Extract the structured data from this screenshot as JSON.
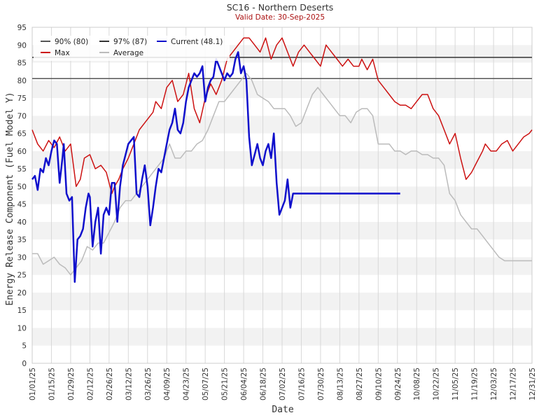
{
  "chart_data": {
    "type": "line",
    "title": "SC16 - Northern Deserts",
    "subtitle": "Valid Date: 30-Sep-2025",
    "xlabel": "Date",
    "ylabel": "Energy Release Component (Fuel Model Y)",
    "ylim": [
      0,
      95
    ],
    "yticks": [
      0,
      5,
      10,
      15,
      20,
      25,
      30,
      35,
      40,
      45,
      50,
      55,
      60,
      65,
      70,
      75,
      80,
      85,
      90,
      95
    ],
    "xticks": [
      "01/01/25",
      "01/15/25",
      "01/29/25",
      "02/12/25",
      "02/26/25",
      "03/12/25",
      "03/26/25",
      "04/09/25",
      "04/23/25",
      "05/07/25",
      "05/21/25",
      "06/04/25",
      "06/18/25",
      "07/02/25",
      "07/16/25",
      "07/30/25",
      "08/13/25",
      "08/27/25",
      "09/10/25",
      "09/24/25",
      "10/08/25",
      "10/22/25",
      "11/05/25",
      "11/19/25",
      "12/03/25",
      "12/17/25",
      "12/31/25"
    ],
    "grid": true,
    "legend_position": "top-left",
    "thresholds": [
      {
        "name": "90% (80)",
        "value": 80.5,
        "color": "#555555"
      },
      {
        "name": "97% (87)",
        "value": 86.5,
        "color": "#333333"
      }
    ],
    "series": [
      {
        "name": "Max",
        "color": "#cc1111",
        "x": [
          0,
          4,
          8,
          12,
          16,
          20,
          24,
          28,
          32,
          35,
          38,
          42,
          46,
          50,
          54,
          58,
          60,
          63,
          66,
          70,
          74,
          78,
          82,
          86,
          88,
          90,
          94,
          98,
          102,
          106,
          110,
          114,
          118,
          122,
          126,
          130,
          134,
          138,
          142,
          146,
          150,
          154,
          158,
          162,
          166,
          170,
          174,
          178,
          182,
          186,
          190,
          194,
          198,
          202,
          206,
          210,
          214,
          218,
          222,
          226,
          230,
          234,
          238,
          240,
          244,
          248,
          252,
          256,
          260,
          264,
          268,
          272,
          276,
          280,
          284,
          288,
          292,
          296,
          300,
          304,
          308,
          312,
          316,
          320,
          324,
          328,
          330,
          334,
          338,
          342,
          346,
          350,
          354,
          358,
          362,
          364
        ],
        "y": [
          66,
          62,
          60,
          63,
          61,
          64,
          60,
          62,
          50,
          52,
          58,
          59,
          55,
          56,
          54,
          48,
          50,
          52,
          55,
          58,
          62,
          66,
          68,
          70,
          71,
          74,
          72,
          78,
          80,
          74,
          76,
          82,
          72,
          68,
          75,
          79,
          76,
          80,
          86,
          88,
          90,
          92,
          92,
          90,
          88,
          92,
          86,
          90,
          92,
          88,
          84,
          88,
          90,
          88,
          86,
          84,
          90,
          88,
          86,
          84,
          86,
          84,
          84,
          86,
          83,
          86,
          80,
          78,
          76,
          74,
          73,
          73,
          72,
          74,
          76,
          76,
          72,
          70,
          66,
          62,
          65,
          58,
          52,
          54,
          57,
          60,
          62,
          60,
          60,
          62,
          63,
          60,
          62,
          64,
          65,
          66
        ]
      },
      {
        "name": "Average",
        "color": "#bbbbbb",
        "x": [
          0,
          4,
          8,
          12,
          16,
          20,
          24,
          28,
          32,
          36,
          40,
          44,
          48,
          52,
          56,
          60,
          64,
          68,
          72,
          76,
          80,
          84,
          88,
          92,
          96,
          100,
          104,
          108,
          112,
          116,
          120,
          124,
          128,
          132,
          136,
          140,
          144,
          148,
          152,
          156,
          160,
          164,
          168,
          172,
          176,
          180,
          184,
          188,
          192,
          196,
          200,
          204,
          208,
          212,
          216,
          220,
          224,
          228,
          232,
          236,
          240,
          244,
          248,
          252,
          256,
          260,
          264,
          268,
          272,
          276,
          280,
          284,
          288,
          292,
          296,
          300,
          304,
          308,
          312,
          316,
          320,
          324,
          328,
          332,
          336,
          340,
          344,
          348,
          352,
          356,
          360,
          364
        ],
        "y": [
          31,
          31,
          28,
          29,
          30,
          28,
          27,
          25,
          27,
          29,
          33,
          32,
          34,
          34,
          37,
          40,
          44,
          46,
          46,
          48,
          50,
          52,
          54,
          56,
          58,
          62,
          58,
          58,
          60,
          60,
          62,
          63,
          66,
          70,
          74,
          74,
          76,
          78,
          80,
          82,
          80,
          76,
          75,
          74,
          72,
          72,
          72,
          70,
          67,
          68,
          72,
          76,
          78,
          76,
          74,
          72,
          70,
          70,
          68,
          71,
          72,
          72,
          70,
          62,
          62,
          62,
          60,
          60,
          59,
          60,
          60,
          59,
          59,
          58,
          58,
          56,
          48,
          46,
          42,
          40,
          38,
          38,
          36,
          34,
          32,
          30,
          29,
          29,
          29,
          29,
          29,
          29
        ]
      },
      {
        "name": "Current (48.1)",
        "color": "#1010cc",
        "x": [
          0,
          2,
          4,
          6,
          8,
          10,
          12,
          14,
          16,
          18,
          20,
          22,
          23,
          25,
          27,
          29,
          31,
          33,
          35,
          37,
          39,
          41,
          42,
          44,
          46,
          48,
          50,
          52,
          54,
          56,
          58,
          60,
          62,
          64,
          66,
          68,
          70,
          72,
          74,
          76,
          78,
          80,
          82,
          84,
          86,
          88,
          90,
          92,
          94,
          96,
          98,
          100,
          102,
          104,
          106,
          108,
          110,
          112,
          114,
          116,
          118,
          120,
          122,
          124,
          126,
          128,
          130,
          132,
          134,
          136,
          138,
          140,
          142,
          144,
          146,
          148,
          150,
          152,
          154,
          156,
          158,
          160,
          162,
          164,
          166,
          168,
          170,
          172,
          174,
          176,
          178,
          180,
          182,
          184,
          186,
          188,
          190,
          192,
          194,
          196,
          198,
          200,
          202,
          204,
          206,
          208,
          210,
          212,
          214,
          216,
          218,
          220,
          222,
          224,
          226,
          228,
          230,
          232,
          234,
          236,
          238,
          240,
          242,
          244,
          246,
          248,
          250,
          252,
          254,
          256,
          258,
          260,
          262,
          264,
          266,
          268
        ],
        "y": [
          52,
          53,
          49,
          55,
          54,
          58,
          56,
          60,
          63,
          62,
          51,
          58,
          62,
          48,
          46,
          47,
          23,
          35,
          36,
          38,
          44,
          48,
          47,
          33,
          40,
          44,
          31,
          42,
          44,
          42,
          51,
          51,
          40,
          50,
          56,
          59,
          62,
          63,
          64,
          48,
          47,
          52,
          56,
          50,
          39,
          44,
          50,
          55,
          54,
          58,
          62,
          66,
          68,
          72,
          66,
          65,
          68,
          74,
          78,
          80,
          82,
          81,
          82,
          84,
          74,
          78,
          80,
          81,
          86,
          84,
          82,
          80,
          82,
          81,
          82,
          86,
          88,
          82,
          84,
          80,
          64,
          56,
          59,
          62,
          58,
          56,
          60,
          62,
          58,
          65,
          51,
          42,
          44,
          46,
          52,
          44,
          48,
          48,
          48,
          48,
          48,
          48,
          48,
          48,
          48,
          48,
          48,
          48,
          48,
          48,
          48,
          48,
          48,
          48,
          48,
          48,
          48,
          48,
          48,
          48,
          48,
          48,
          48,
          48,
          48,
          48,
          48,
          48,
          48,
          48,
          48,
          48,
          48,
          48,
          48,
          48
        ]
      }
    ]
  }
}
